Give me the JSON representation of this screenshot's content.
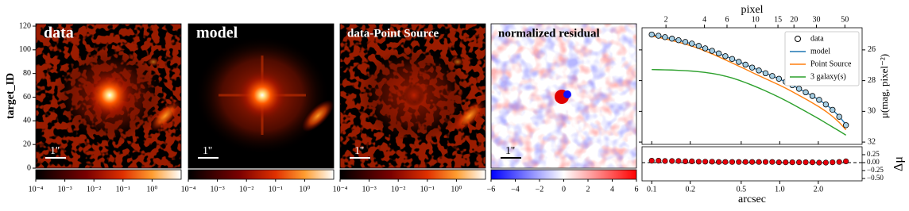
{
  "image_panels": [
    {
      "title": "data",
      "scale_label": "1''",
      "colormap": "gist_heat",
      "colorbar": {
        "log": true,
        "lim": [
          0.0001,
          10
        ],
        "ticks": [
          {
            "value": 0.0001,
            "label": "10⁻⁴"
          },
          {
            "value": 0.001,
            "label": "10⁻³"
          },
          {
            "value": 0.01,
            "label": "10⁻²"
          },
          {
            "value": 0.1,
            "label": "10⁻¹"
          },
          {
            "value": 1,
            "label": "10⁰"
          }
        ]
      }
    },
    {
      "title": "model",
      "scale_label": "1''",
      "colormap": "gist_heat",
      "colorbar": {
        "log": true,
        "lim": [
          0.0001,
          10
        ],
        "ticks": [
          {
            "value": 0.0001,
            "label": "10⁻⁴"
          },
          {
            "value": 0.001,
            "label": "10⁻³"
          },
          {
            "value": 0.01,
            "label": "10⁻²"
          },
          {
            "value": 0.1,
            "label": "10⁻¹"
          },
          {
            "value": 1,
            "label": "10⁰"
          }
        ]
      }
    },
    {
      "title": "data-Point Source",
      "scale_label": "1''",
      "colormap": "gist_heat",
      "colorbar": {
        "log": true,
        "lim": [
          0.0001,
          10
        ],
        "ticks": [
          {
            "value": 0.0001,
            "label": "10⁻⁴"
          },
          {
            "value": 0.001,
            "label": "10⁻³"
          },
          {
            "value": 0.01,
            "label": "10⁻²"
          },
          {
            "value": 0.1,
            "label": "10⁻¹"
          },
          {
            "value": 1,
            "label": "10⁰"
          }
        ]
      }
    },
    {
      "title": "normalized residual",
      "scale_label": "1''",
      "colormap": "bwr",
      "colorbar": {
        "log": false,
        "lim": [
          -6,
          6
        ],
        "ticks": [
          {
            "value": -6,
            "label": "−6"
          },
          {
            "value": -4,
            "label": "−4"
          },
          {
            "value": -2,
            "label": "−2"
          },
          0,
          2,
          4,
          6
        ]
      }
    }
  ],
  "image_axis": {
    "ylabel": "target_ID",
    "ylim": [
      0,
      122
    ],
    "yticks": [
      0,
      20,
      40,
      60,
      80,
      100,
      120
    ]
  },
  "chart_data": {
    "type": "line",
    "xlabel": "arcsec",
    "x2label": "pixel",
    "ylabel": "μ(mag, pixel⁻²)",
    "log_x": true,
    "y_inverted": true,
    "xlim": [
      0.084,
      4.4
    ],
    "xticks": [
      0.1,
      0.2,
      0.5,
      {
        "value": 1,
        "label": "1.0"
      },
      {
        "value": 2,
        "label": "2.0"
      }
    ],
    "x2lim": [
      1.3,
      68.2
    ],
    "x2ticks": [
      2,
      4,
      6,
      10,
      15,
      20,
      30,
      50
    ],
    "ylim": [
      24.56,
      32.15
    ],
    "yticks": [
      26,
      28,
      30,
      32
    ],
    "legend": "upper right",
    "x": [
      0.1,
      0.113,
      0.127,
      0.144,
      0.162,
      0.183,
      0.206,
      0.233,
      0.262,
      0.296,
      0.334,
      0.376,
      0.425,
      0.479,
      0.54,
      0.609,
      0.687,
      0.775,
      0.874,
      0.986,
      1.112,
      1.255,
      1.415,
      1.596,
      1.801,
      2.031,
      2.291,
      2.584,
      2.915,
      3.289
    ],
    "series": [
      {
        "name": "data",
        "color": "#a6cee3",
        "marker": "o",
        "values": [
          25.0,
          25.08,
          25.17,
          25.27,
          25.37,
          25.48,
          25.59,
          25.74,
          25.9,
          26.06,
          26.23,
          26.41,
          26.59,
          26.78,
          26.96,
          27.15,
          27.34,
          27.52,
          27.7,
          27.88,
          28.08,
          28.3,
          28.53,
          28.76,
          29.0,
          29.25,
          29.55,
          29.9,
          30.35,
          30.9
        ]
      },
      {
        "name": "model",
        "color": "#1f77b4",
        "values": [
          25.01,
          25.09,
          25.18,
          25.28,
          25.38,
          25.49,
          25.6,
          25.74,
          25.9,
          26.06,
          26.23,
          26.4,
          26.58,
          26.77,
          26.95,
          27.14,
          27.33,
          27.51,
          27.69,
          27.88,
          28.08,
          28.3,
          28.53,
          28.76,
          29.0,
          29.26,
          29.55,
          29.89,
          30.33,
          30.86
        ]
      },
      {
        "name": "Point Source",
        "color": "#ff7f0e",
        "values": [
          25.1,
          25.18,
          25.28,
          25.39,
          25.5,
          25.62,
          25.75,
          25.91,
          26.08,
          26.26,
          26.45,
          26.65,
          26.85,
          27.06,
          27.26,
          27.47,
          27.68,
          27.88,
          28.08,
          28.28,
          28.49,
          28.72,
          28.96,
          29.2,
          29.45,
          29.71,
          30.0,
          30.33,
          30.72,
          31.2
        ]
      },
      {
        "name": "3 galaxy(s)",
        "color": "#2ca02c",
        "values": [
          27.28,
          27.29,
          27.3,
          27.31,
          27.33,
          27.35,
          27.38,
          27.42,
          27.47,
          27.53,
          27.61,
          27.71,
          27.83,
          27.97,
          28.13,
          28.3,
          28.48,
          28.67,
          28.87,
          29.08,
          29.3,
          29.53,
          29.77,
          30.01,
          30.25,
          30.5,
          30.76,
          31.02,
          31.28,
          31.55
        ]
      }
    ],
    "residual": {
      "label": "Δμ",
      "color": "#e8000b",
      "values": [
        0.06,
        0.06,
        0.05,
        0.05,
        0.05,
        0.04,
        0.04,
        0.03,
        0.03,
        0.03,
        0.02,
        0.02,
        0.02,
        0.02,
        0.02,
        0.02,
        0.02,
        0.02,
        0.02,
        0.01,
        0.01,
        0.01,
        0.01,
        0.01,
        0.01,
        0.0,
        0.0,
        0.01,
        0.02,
        0.04
      ],
      "ylim": [
        -0.575,
        0.5
      ],
      "yticks": [
        0.25,
        {
          "value": 0,
          "label": "0.00"
        },
        {
          "value": -0.25,
          "label": "−0.25"
        },
        {
          "value": -0.5,
          "label": "−0.50"
        }
      ]
    }
  }
}
